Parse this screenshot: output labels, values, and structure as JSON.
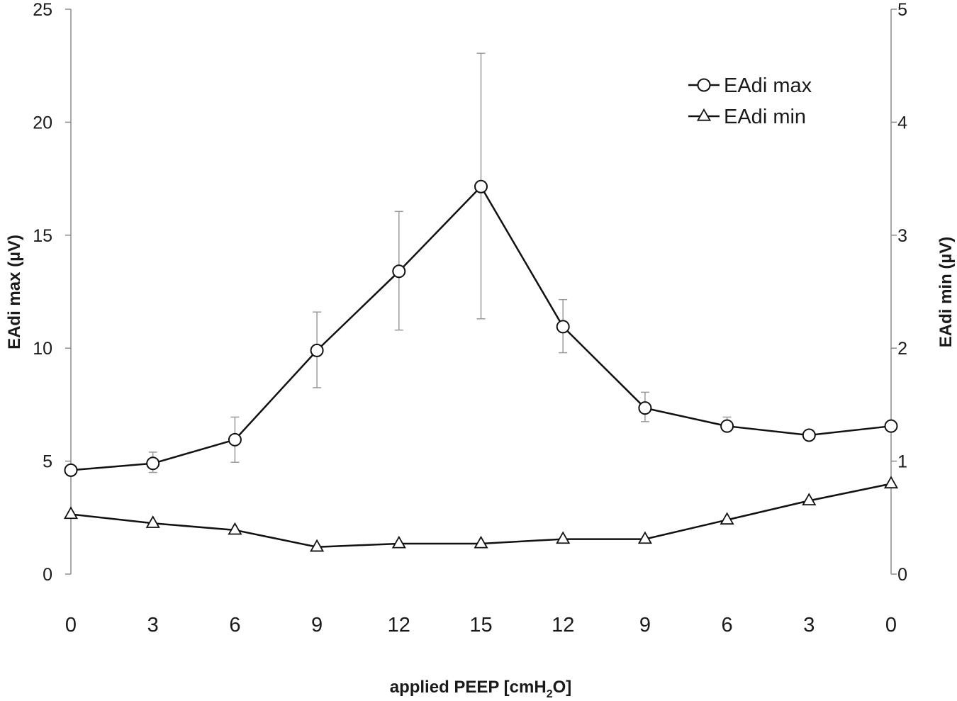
{
  "chart_data": {
    "type": "line",
    "xlabel_prefix": "applied PEEP [cmH",
    "xlabel_sub": "2",
    "xlabel_suffix": "O]",
    "ylabel_left": "EAdi max (µV)",
    "ylabel_right": "EAdi min (µV)",
    "categories": [
      "0",
      "3",
      "6",
      "9",
      "12",
      "15",
      "12",
      "9",
      "6",
      "3",
      "0"
    ],
    "y_left": {
      "min": 0,
      "max": 25,
      "ticks": [
        "0",
        "5",
        "10",
        "15",
        "20",
        "25"
      ]
    },
    "y_right": {
      "min": 0,
      "max": 5,
      "ticks": [
        "0",
        "1",
        "2",
        "3",
        "4",
        "5"
      ]
    },
    "grid": false,
    "legend_position": "top-right",
    "series": [
      {
        "name": "EAdi max",
        "axis": "left",
        "marker": "circle",
        "values": [
          4.6,
          4.9,
          5.95,
          9.9,
          13.4,
          17.15,
          10.95,
          7.35,
          6.55,
          6.15,
          6.55
        ],
        "error_upper": [
          null,
          5.4,
          6.95,
          11.6,
          16.05,
          23.05,
          12.15,
          8.05,
          6.95,
          null,
          null
        ],
        "error_lower": [
          null,
          4.5,
          4.95,
          8.25,
          10.8,
          11.3,
          9.8,
          6.75,
          6.55,
          null,
          null
        ]
      },
      {
        "name": "EAdi min",
        "axis": "right",
        "marker": "triangle",
        "values": [
          0.53,
          0.45,
          0.39,
          0.24,
          0.27,
          0.27,
          0.31,
          0.31,
          0.48,
          0.65,
          0.8
        ]
      }
    ]
  }
}
